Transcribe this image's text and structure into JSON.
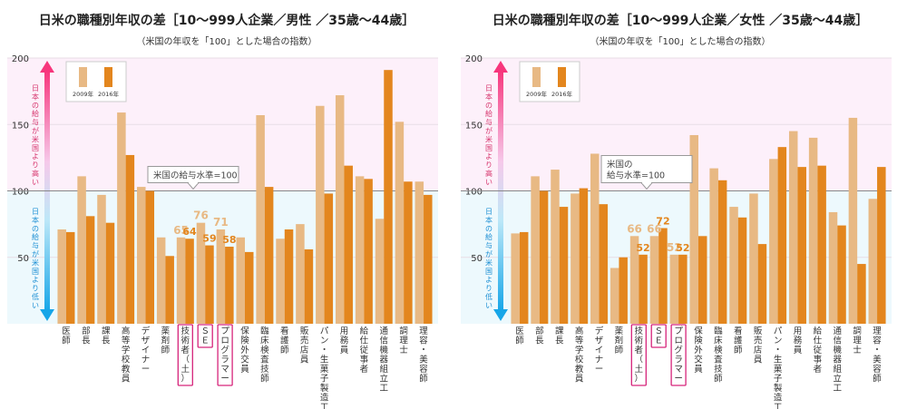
{
  "chart_data": [
    {
      "type": "bar",
      "title": "日米の職種別年収の差［10～999人企業／男性 ／35歳～44歳］",
      "subtitle": "（米国の年収を「100」とした場合の指数）",
      "categories": [
        "医師",
        "部長",
        "課長",
        "高等学校教員",
        "デザイナー",
        "薬剤師",
        "技術者（土）",
        "ＳＥ",
        "プログラマー",
        "保険外交員",
        "臨床検査技師",
        "看護師",
        "販売店員",
        "パン・生菓子製造工",
        "用務員",
        "給仕従事者",
        "通信機器組立工",
        "調理士",
        "理容・美容師"
      ],
      "highlighted_categories": [
        "技術者（土）",
        "ＳＥ",
        "プログラマー"
      ],
      "series": [
        {
          "name": "2009年",
          "color": "#E8B984",
          "values": [
            71,
            111,
            97,
            159,
            103,
            65,
            65,
            76,
            71,
            65,
            157,
            64,
            75,
            164,
            172,
            111,
            79,
            152,
            107
          ]
        },
        {
          "name": "2016年",
          "color": "#E3861E",
          "values": [
            69,
            81,
            76,
            127,
            100,
            51,
            64,
            59,
            58,
            54,
            103,
            71,
            56,
            98,
            119,
            109,
            191,
            107,
            97
          ]
        }
      ],
      "data_labels": [
        {
          "category": "技術者（土）",
          "values": [
            "65",
            "64"
          ]
        },
        {
          "category": "ＳＥ",
          "values": [
            "76",
            "59"
          ]
        },
        {
          "category": "プログラマー",
          "values": [
            "71",
            "58"
          ]
        }
      ],
      "ylim": [
        0,
        200
      ],
      "yticks": [
        "50",
        "100",
        "150",
        "200"
      ],
      "reference_line": {
        "value": 100,
        "label": "米国の給与水準=100"
      },
      "arrow_up_label": "日本の給与が米国より高い",
      "arrow_down_label": "日本の給与が米国より低い",
      "legend_position": "top-left",
      "grid": false
    },
    {
      "type": "bar",
      "title": "日米の職種別年収の差［10～999人企業／女性 ／35歳～44歳］",
      "subtitle": "（米国の年収を「100」とした場合の指数）",
      "categories": [
        "医師",
        "部長",
        "課長",
        "高等学校教員",
        "デザイナー",
        "薬剤師",
        "技術者（土）",
        "ＳＥ",
        "プログラマー",
        "保険外交員",
        "臨床検査技師",
        "看護師",
        "販売店員",
        "パン・生菓子製造工",
        "用務員",
        "給仕従事者",
        "通信機器組立工",
        "調理士",
        "理容・美容師"
      ],
      "highlighted_categories": [
        "技術者（土）",
        "ＳＥ",
        "プログラマー"
      ],
      "series": [
        {
          "name": "2009年",
          "color": "#E8B984",
          "values": [
            68,
            111,
            116,
            98,
            128,
            42,
            66,
            66,
            52,
            142,
            117,
            88,
            98,
            124,
            145,
            140,
            84,
            155,
            94
          ]
        },
        {
          "name": "2016年",
          "color": "#E3861E",
          "values": [
            69,
            100,
            88,
            102,
            90,
            50,
            52,
            72,
            52,
            66,
            108,
            80,
            60,
            133,
            118,
            119,
            74,
            45,
            118
          ]
        }
      ],
      "data_labels": [
        {
          "category": "技術者（土）",
          "values": [
            "66",
            "52"
          ]
        },
        {
          "category": "ＳＥ",
          "values": [
            "66",
            "72"
          ]
        },
        {
          "category": "プログラマー",
          "values": [
            "52",
            "52"
          ]
        }
      ],
      "ylim": [
        0,
        200
      ],
      "yticks": [
        "50",
        "100",
        "150",
        "200"
      ],
      "reference_line": {
        "value": 100,
        "label": "米国の給与水準=100"
      },
      "reference_line_label_lines": [
        "米国の",
        "給与水準=100"
      ],
      "arrow_up_label": "日本の給与が米国より高い",
      "arrow_down_label": "日本の給与が米国より低い",
      "legend_position": "top-left",
      "grid": false
    }
  ]
}
